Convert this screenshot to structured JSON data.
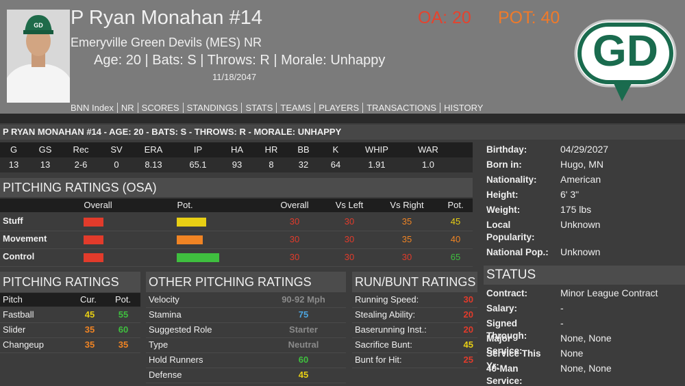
{
  "header": {
    "name": "P Ryan Monahan #14",
    "team": "Emeryville Green Devils (MES) NR",
    "info": "Age: 20 | Bats: S | Throws: R | Morale: Unhappy",
    "date": "11/18/2047",
    "overall": "OA: 20",
    "potential": "POT: 40",
    "logo": "GD",
    "nav": [
      "BNN Index",
      "NR",
      "SCORES",
      "STANDINGS",
      "STATS",
      "TEAMS",
      "PLAYERS",
      "TRANSACTIONS",
      "HISTORY"
    ]
  },
  "summary": "P RYAN MONAHAN #14 - AGE: 20 - BATS: S - THROWS: R - MORALE: UNHAPPY",
  "stats": {
    "headers": [
      "G",
      "GS",
      "Rec",
      "SV",
      "ERA",
      "IP",
      "HA",
      "HR",
      "BB",
      "K",
      "WHIP",
      "WAR"
    ],
    "values": [
      13,
      13,
      "2-6",
      0,
      8.13,
      65.1,
      93,
      8,
      32,
      64,
      1.91,
      "1.0"
    ]
  },
  "pitching_osa": {
    "title": "PITCHING RATINGS (OSA)",
    "columns": [
      "Overall",
      "Pot.",
      "Overall",
      "Vs Left",
      "Vs Right",
      "Pot."
    ],
    "rows": [
      {
        "label": "Stuff",
        "values": [
          30,
          30,
          35,
          45
        ]
      },
      {
        "label": "Movement",
        "values": [
          30,
          30,
          35,
          40
        ]
      },
      {
        "label": "Control",
        "values": [
          30,
          30,
          30,
          65
        ]
      }
    ]
  },
  "pitches": {
    "title": "PITCHING RATINGS",
    "columns": [
      "Pitch",
      "Cur.",
      "Pot."
    ],
    "rows": [
      {
        "label": "Fastball",
        "values": [
          45,
          55
        ]
      },
      {
        "label": "Slider",
        "values": [
          35,
          60
        ]
      },
      {
        "label": "Changeup",
        "values": [
          35,
          35
        ]
      }
    ]
  },
  "other": {
    "title": "OTHER PITCHING RATINGS",
    "rows": [
      {
        "label": "Velocity",
        "value": "90-92 Mph"
      },
      {
        "label": "Stamina",
        "value": 75
      },
      {
        "label": "Suggested Role",
        "value": "Starter"
      },
      {
        "label": "Type",
        "value": "Neutral"
      },
      {
        "label": "Hold Runners",
        "value": 60
      },
      {
        "label": "Defense",
        "value": 45
      }
    ]
  },
  "run_bunt": {
    "title": "RUN/BUNT RATINGS",
    "rows": [
      {
        "label": "Running Speed:",
        "value": 30
      },
      {
        "label": "Stealing Ability:",
        "value": 20
      },
      {
        "label": "Baserunning Inst.:",
        "value": 20
      },
      {
        "label": "Sacrifice Bunt:",
        "value": 45
      },
      {
        "label": "Bunt for Hit:",
        "value": 25
      }
    ]
  },
  "bio": {
    "rows": [
      {
        "label": "Birthday:",
        "value": "04/29/2027"
      },
      {
        "label": "Born in:",
        "value": "Hugo, MN"
      },
      {
        "label": "Nationality:",
        "value": "American"
      },
      {
        "label": "Height:",
        "value": "6' 3\""
      },
      {
        "label": "Weight:",
        "value": "175 lbs"
      },
      {
        "label": "Local Popularity:",
        "value": "Unknown"
      },
      {
        "label": "National Pop.:",
        "value": "Unknown"
      }
    ]
  },
  "status": {
    "title": "STATUS",
    "rows": [
      {
        "label": "Contract:",
        "value": "Minor League Contract"
      },
      {
        "label": "Salary:",
        "value": "-"
      },
      {
        "label": "Signed Through:",
        "value": "-"
      },
      {
        "label": "Major Service:",
        "value": "None, None"
      },
      {
        "label": "Service This Yr:",
        "value": "None"
      },
      {
        "label": "40-Man Service:",
        "value": "None, None"
      }
    ]
  }
}
